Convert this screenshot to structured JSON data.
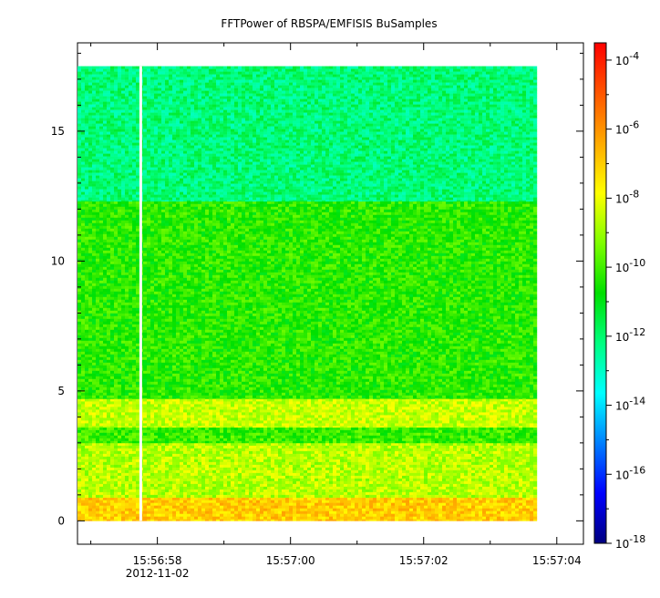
{
  "chart_data": {
    "type": "heatmap",
    "title": "FFTPower of RBSPA/EMFISIS  BuSamples",
    "xlabel": "",
    "ylabel": "",
    "x": {
      "ticks": [
        {
          "label": "15:56:58",
          "sublabel": "2012-11-02"
        },
        {
          "label": "15:57:00",
          "sublabel": ""
        },
        {
          "label": "15:57:02",
          "sublabel": ""
        },
        {
          "label": "15:57:04",
          "sublabel": ""
        }
      ],
      "range_seconds_after_155656": [
        0.8,
        8.4
      ],
      "data_range_seconds_after_155656": [
        0.8,
        7.7
      ],
      "gap_seconds_after_155656": 1.75
    },
    "y": {
      "ticks": [
        0,
        5,
        10,
        15
      ],
      "range": [
        -0.9,
        18.4
      ],
      "data_range": [
        0,
        17.5
      ]
    },
    "colorbar": {
      "scale": "log",
      "range_exp": [
        -18,
        -3.5
      ],
      "tick_labels": [
        {
          "exp": -4,
          "text": "10-4"
        },
        {
          "exp": -6,
          "text": "10-6"
        },
        {
          "exp": -8,
          "text": "10-8"
        },
        {
          "exp": -10,
          "text": "10-10"
        },
        {
          "exp": -12,
          "text": "10-12"
        },
        {
          "exp": -14,
          "text": "10-14"
        },
        {
          "exp": -16,
          "text": "10-16"
        },
        {
          "exp": -18,
          "text": "10-18"
        }
      ],
      "colors": [
        "#00007f",
        "#0000ff",
        "#007fff",
        "#00ffff",
        "#00ff80",
        "#00e000",
        "#7fff00",
        "#ffff00",
        "#ffaa00",
        "#ff5500",
        "#ff0000"
      ]
    },
    "bands": [
      {
        "y_from": 0,
        "y_to": 0.9,
        "level_exp": -7.0
      },
      {
        "y_from": 0.9,
        "y_to": 3.0,
        "level_exp": -8.7
      },
      {
        "y_from": 3.0,
        "y_to": 3.6,
        "level_exp": -10.1
      },
      {
        "y_from": 3.6,
        "y_to": 4.7,
        "level_exp": -8.5
      },
      {
        "y_from": 4.7,
        "y_to": 12.3,
        "level_exp": -10.3
      },
      {
        "y_from": 12.3,
        "y_to": 17.5,
        "level_exp": -12.1
      }
    ],
    "grid": false,
    "legend": "colorbar-right"
  }
}
